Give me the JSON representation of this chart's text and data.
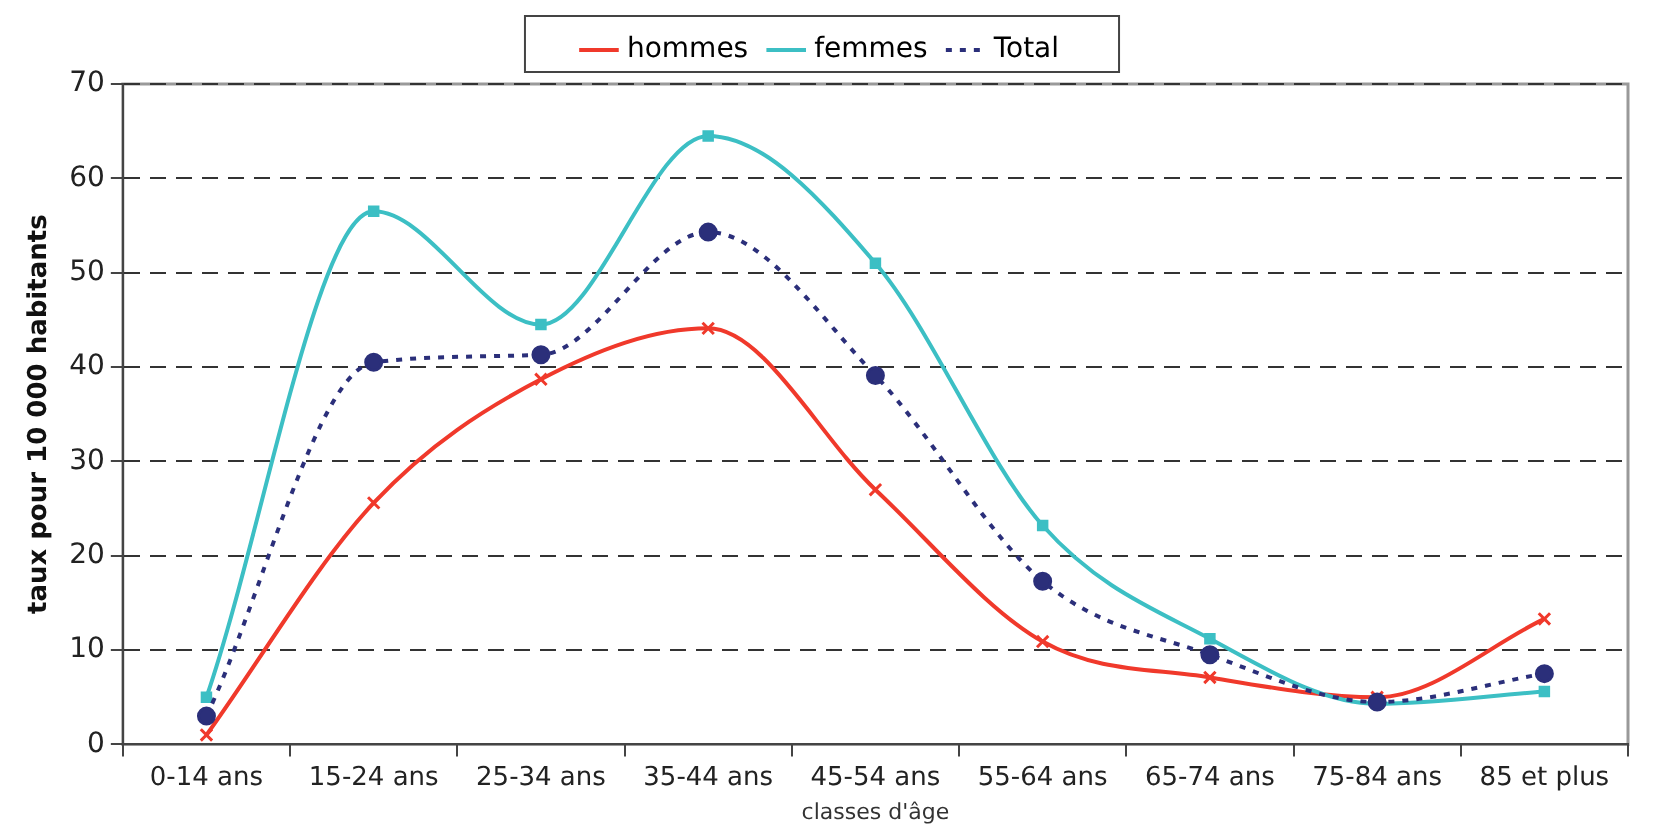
{
  "chart_data": {
    "type": "line",
    "xlabel": "classes d'âge",
    "ylabel": "taux pour 10 000 habitants",
    "categories": [
      "0-14 ans",
      "15-24 ans",
      "25-34 ans",
      "35-44 ans",
      "45-54 ans",
      "55-64 ans",
      "65-74 ans",
      "75-84 ans",
      "85 et plus"
    ],
    "series": [
      {
        "name": "hommes",
        "color": "#f0392b",
        "marker": "cross",
        "line_style": "solid",
        "values": [
          1,
          25.6,
          38.7,
          44.1,
          27,
          10.9,
          7.1,
          5,
          13.3
        ]
      },
      {
        "name": "femmes",
        "color": "#3cbfc4",
        "marker": "square",
        "line_style": "solid",
        "values": [
          5,
          56.5,
          44.5,
          64.5,
          51,
          23.2,
          11.2,
          4.3,
          5.6
        ]
      },
      {
        "name": "Total",
        "color": "#2b2f7a",
        "marker": "circle",
        "line_style": "dotted",
        "values": [
          3,
          40.5,
          41.3,
          54.3,
          39.1,
          17.3,
          9.5,
          4.5,
          7.5
        ]
      }
    ],
    "ylim": [
      0,
      70
    ],
    "yticks": [
      0,
      10,
      20,
      30,
      40,
      50,
      60,
      70
    ],
    "grid": "y",
    "legend": "top"
  }
}
